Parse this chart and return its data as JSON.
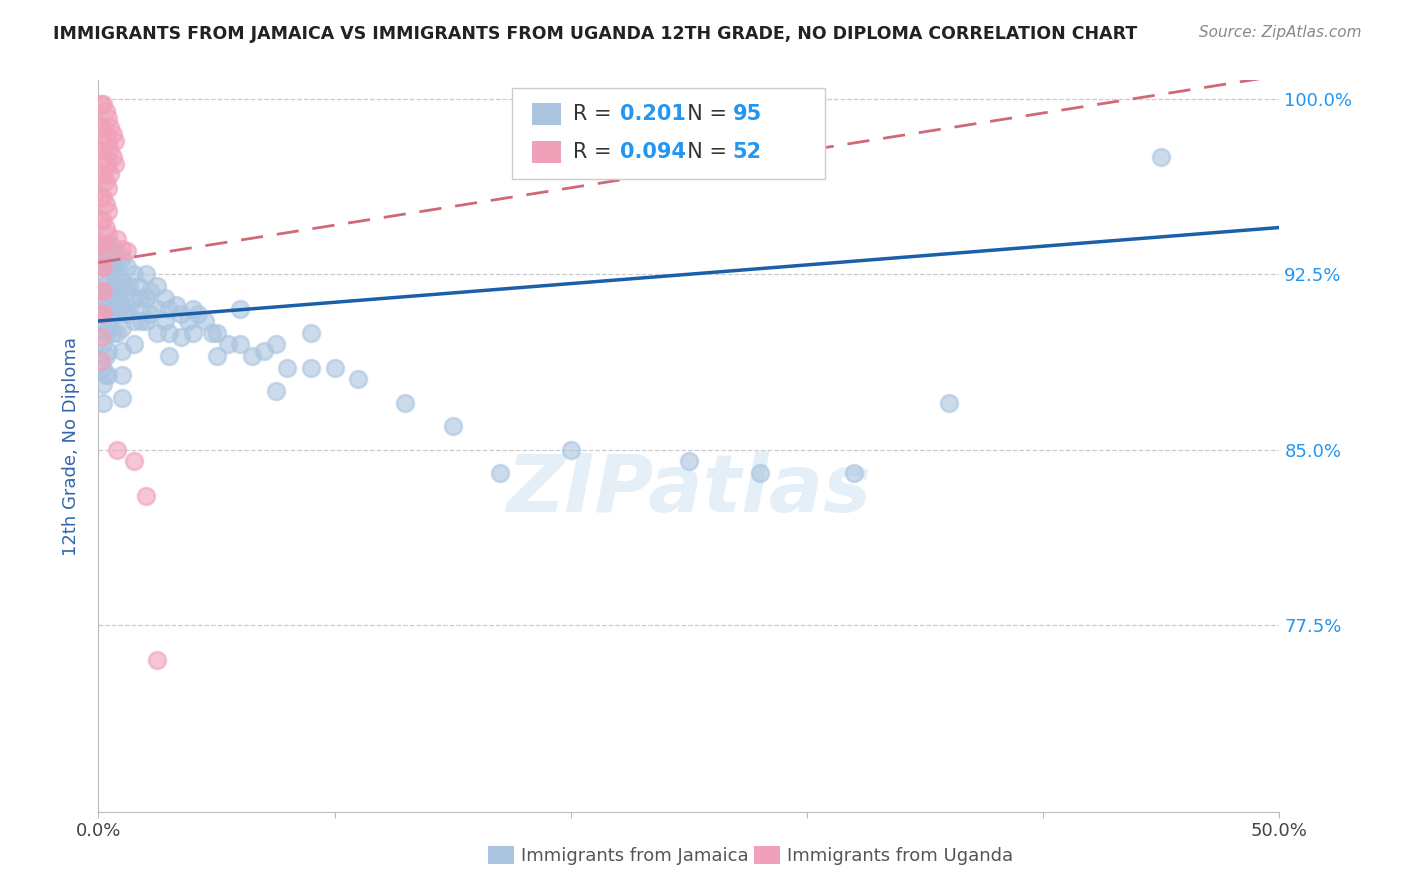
{
  "title": "IMMIGRANTS FROM JAMAICA VS IMMIGRANTS FROM UGANDA 12TH GRADE, NO DIPLOMA CORRELATION CHART",
  "source": "Source: ZipAtlas.com",
  "ylabel": "12th Grade, No Diploma",
  "xlim": [
    0.0,
    0.5
  ],
  "ylim": [
    0.695,
    1.008
  ],
  "ytick_values": [
    0.775,
    0.85,
    0.925,
    1.0
  ],
  "ytick_labels": [
    "77.5%",
    "85.0%",
    "92.5%",
    "100.0%"
  ],
  "legend_jamaica_R": "0.201",
  "legend_jamaica_N": "95",
  "legend_uganda_R": "0.094",
  "legend_uganda_N": "52",
  "watermark": "ZIPatlas",
  "jamaica_color": "#aac4e0",
  "uganda_color": "#f0a0b8",
  "jamaica_line_color": "#1a5fa8",
  "uganda_line_color": "#d06878",
  "jamaica_scatter": [
    [
      0.002,
      0.93
    ],
    [
      0.002,
      0.92
    ],
    [
      0.002,
      0.915
    ],
    [
      0.002,
      0.905
    ],
    [
      0.002,
      0.895
    ],
    [
      0.002,
      0.885
    ],
    [
      0.002,
      0.878
    ],
    [
      0.002,
      0.87
    ],
    [
      0.003,
      0.938
    ],
    [
      0.003,
      0.928
    ],
    [
      0.003,
      0.918
    ],
    [
      0.003,
      0.91
    ],
    [
      0.003,
      0.9
    ],
    [
      0.003,
      0.89
    ],
    [
      0.003,
      0.882
    ],
    [
      0.004,
      0.932
    ],
    [
      0.004,
      0.922
    ],
    [
      0.004,
      0.912
    ],
    [
      0.004,
      0.902
    ],
    [
      0.004,
      0.892
    ],
    [
      0.004,
      0.882
    ],
    [
      0.005,
      0.938
    ],
    [
      0.005,
      0.928
    ],
    [
      0.005,
      0.918
    ],
    [
      0.006,
      0.93
    ],
    [
      0.006,
      0.92
    ],
    [
      0.006,
      0.91
    ],
    [
      0.006,
      0.9
    ],
    [
      0.007,
      0.935
    ],
    [
      0.007,
      0.925
    ],
    [
      0.007,
      0.915
    ],
    [
      0.008,
      0.928
    ],
    [
      0.008,
      0.918
    ],
    [
      0.008,
      0.908
    ],
    [
      0.008,
      0.9
    ],
    [
      0.009,
      0.92
    ],
    [
      0.009,
      0.91
    ],
    [
      0.01,
      0.932
    ],
    [
      0.01,
      0.922
    ],
    [
      0.01,
      0.912
    ],
    [
      0.01,
      0.902
    ],
    [
      0.01,
      0.892
    ],
    [
      0.01,
      0.882
    ],
    [
      0.01,
      0.872
    ],
    [
      0.012,
      0.928
    ],
    [
      0.012,
      0.918
    ],
    [
      0.012,
      0.908
    ],
    [
      0.013,
      0.92
    ],
    [
      0.013,
      0.91
    ],
    [
      0.015,
      0.925
    ],
    [
      0.015,
      0.915
    ],
    [
      0.015,
      0.905
    ],
    [
      0.015,
      0.895
    ],
    [
      0.017,
      0.92
    ],
    [
      0.017,
      0.91
    ],
    [
      0.018,
      0.915
    ],
    [
      0.018,
      0.905
    ],
    [
      0.02,
      0.925
    ],
    [
      0.02,
      0.915
    ],
    [
      0.02,
      0.905
    ],
    [
      0.022,
      0.918
    ],
    [
      0.022,
      0.908
    ],
    [
      0.025,
      0.92
    ],
    [
      0.025,
      0.91
    ],
    [
      0.025,
      0.9
    ],
    [
      0.028,
      0.915
    ],
    [
      0.028,
      0.905
    ],
    [
      0.03,
      0.91
    ],
    [
      0.03,
      0.9
    ],
    [
      0.03,
      0.89
    ],
    [
      0.033,
      0.912
    ],
    [
      0.035,
      0.908
    ],
    [
      0.035,
      0.898
    ],
    [
      0.038,
      0.905
    ],
    [
      0.04,
      0.91
    ],
    [
      0.04,
      0.9
    ],
    [
      0.042,
      0.908
    ],
    [
      0.045,
      0.905
    ],
    [
      0.048,
      0.9
    ],
    [
      0.05,
      0.9
    ],
    [
      0.05,
      0.89
    ],
    [
      0.055,
      0.895
    ],
    [
      0.06,
      0.91
    ],
    [
      0.06,
      0.895
    ],
    [
      0.065,
      0.89
    ],
    [
      0.07,
      0.892
    ],
    [
      0.075,
      0.895
    ],
    [
      0.075,
      0.875
    ],
    [
      0.08,
      0.885
    ],
    [
      0.09,
      0.9
    ],
    [
      0.09,
      0.885
    ],
    [
      0.1,
      0.885
    ],
    [
      0.11,
      0.88
    ],
    [
      0.13,
      0.87
    ],
    [
      0.15,
      0.86
    ],
    [
      0.17,
      0.84
    ],
    [
      0.2,
      0.85
    ],
    [
      0.25,
      0.845
    ],
    [
      0.28,
      0.84
    ],
    [
      0.32,
      0.84
    ],
    [
      0.36,
      0.87
    ],
    [
      0.45,
      0.975
    ]
  ],
  "uganda_scatter": [
    [
      0.001,
      0.998
    ],
    [
      0.001,
      0.988
    ],
    [
      0.001,
      0.978
    ],
    [
      0.001,
      0.968
    ],
    [
      0.001,
      0.958
    ],
    [
      0.001,
      0.948
    ],
    [
      0.001,
      0.938
    ],
    [
      0.001,
      0.928
    ],
    [
      0.001,
      0.918
    ],
    [
      0.001,
      0.908
    ],
    [
      0.001,
      0.898
    ],
    [
      0.001,
      0.888
    ],
    [
      0.002,
      0.998
    ],
    [
      0.002,
      0.988
    ],
    [
      0.002,
      0.978
    ],
    [
      0.002,
      0.968
    ],
    [
      0.002,
      0.958
    ],
    [
      0.002,
      0.948
    ],
    [
      0.002,
      0.938
    ],
    [
      0.002,
      0.928
    ],
    [
      0.002,
      0.918
    ],
    [
      0.002,
      0.908
    ],
    [
      0.003,
      0.995
    ],
    [
      0.003,
      0.985
    ],
    [
      0.003,
      0.975
    ],
    [
      0.003,
      0.965
    ],
    [
      0.003,
      0.955
    ],
    [
      0.003,
      0.945
    ],
    [
      0.003,
      0.935
    ],
    [
      0.004,
      0.992
    ],
    [
      0.004,
      0.982
    ],
    [
      0.004,
      0.972
    ],
    [
      0.004,
      0.962
    ],
    [
      0.004,
      0.952
    ],
    [
      0.004,
      0.942
    ],
    [
      0.005,
      0.988
    ],
    [
      0.005,
      0.978
    ],
    [
      0.005,
      0.968
    ],
    [
      0.006,
      0.985
    ],
    [
      0.006,
      0.975
    ],
    [
      0.007,
      0.982
    ],
    [
      0.007,
      0.972
    ],
    [
      0.008,
      0.94
    ],
    [
      0.008,
      0.85
    ],
    [
      0.01,
      0.936
    ],
    [
      0.012,
      0.935
    ],
    [
      0.015,
      0.845
    ],
    [
      0.02,
      0.83
    ],
    [
      0.025,
      0.76
    ]
  ],
  "jline_x0": 0.0,
  "jline_x1": 0.5,
  "jline_y0": 0.905,
  "jline_y1": 0.945,
  "uline_x0": 0.0,
  "uline_x1": 0.5,
  "uline_y0": 0.93,
  "uline_y1": 1.01
}
